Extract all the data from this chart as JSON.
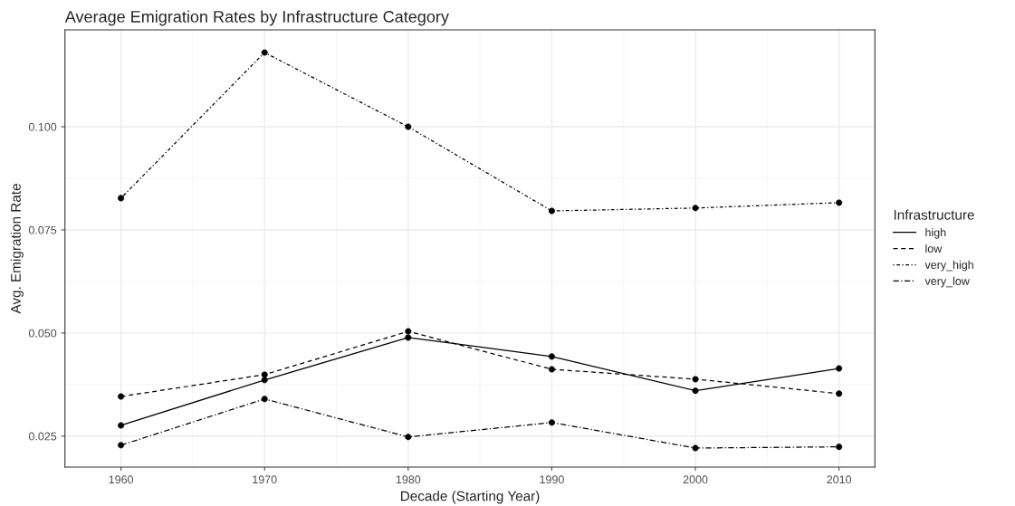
{
  "chart_data": {
    "type": "line",
    "title": "Average Emigration Rates by Infrastructure Category",
    "xlabel": "Decade (Starting Year)",
    "ylabel": "Avg. Emigration Rate",
    "legend_title": "Infrastructure",
    "x": [
      1960,
      1970,
      1980,
      1990,
      2000,
      2010
    ],
    "series": [
      {
        "name": "high",
        "color": "#000000",
        "line_style": "solid",
        "values": [
          0.0276,
          0.0386,
          0.0489,
          0.0443,
          0.036,
          0.0414
        ]
      },
      {
        "name": "low",
        "color": "#000000",
        "line_style": "dashed",
        "values": [
          0.0346,
          0.0399,
          0.0504,
          0.0412,
          0.0388,
          0.0353
        ]
      },
      {
        "name": "very_high",
        "color": "#000000",
        "line_style": "dotted",
        "values": [
          0.0827,
          0.118,
          0.1,
          0.0796,
          0.0803,
          0.0816
        ]
      },
      {
        "name": "very_low",
        "color": "#000000",
        "line_style": "dashdot",
        "values": [
          0.0228,
          0.034,
          0.0248,
          0.0283,
          0.0221,
          0.0224
        ]
      }
    ],
    "xlim": [
      1956.1,
      2012.5
    ],
    "ylim": [
      0.0175,
      0.1235
    ],
    "xticks": [
      1960,
      1970,
      1980,
      1990,
      2000,
      2010
    ],
    "yticks": [
      {
        "value": 0.025,
        "label": "0.025"
      },
      {
        "value": 0.05,
        "label": "0.050"
      },
      {
        "value": 0.075,
        "label": "0.075"
      },
      {
        "value": 0.1,
        "label": "0.100"
      }
    ],
    "grid": true,
    "legend": "right",
    "marker": "circle"
  }
}
